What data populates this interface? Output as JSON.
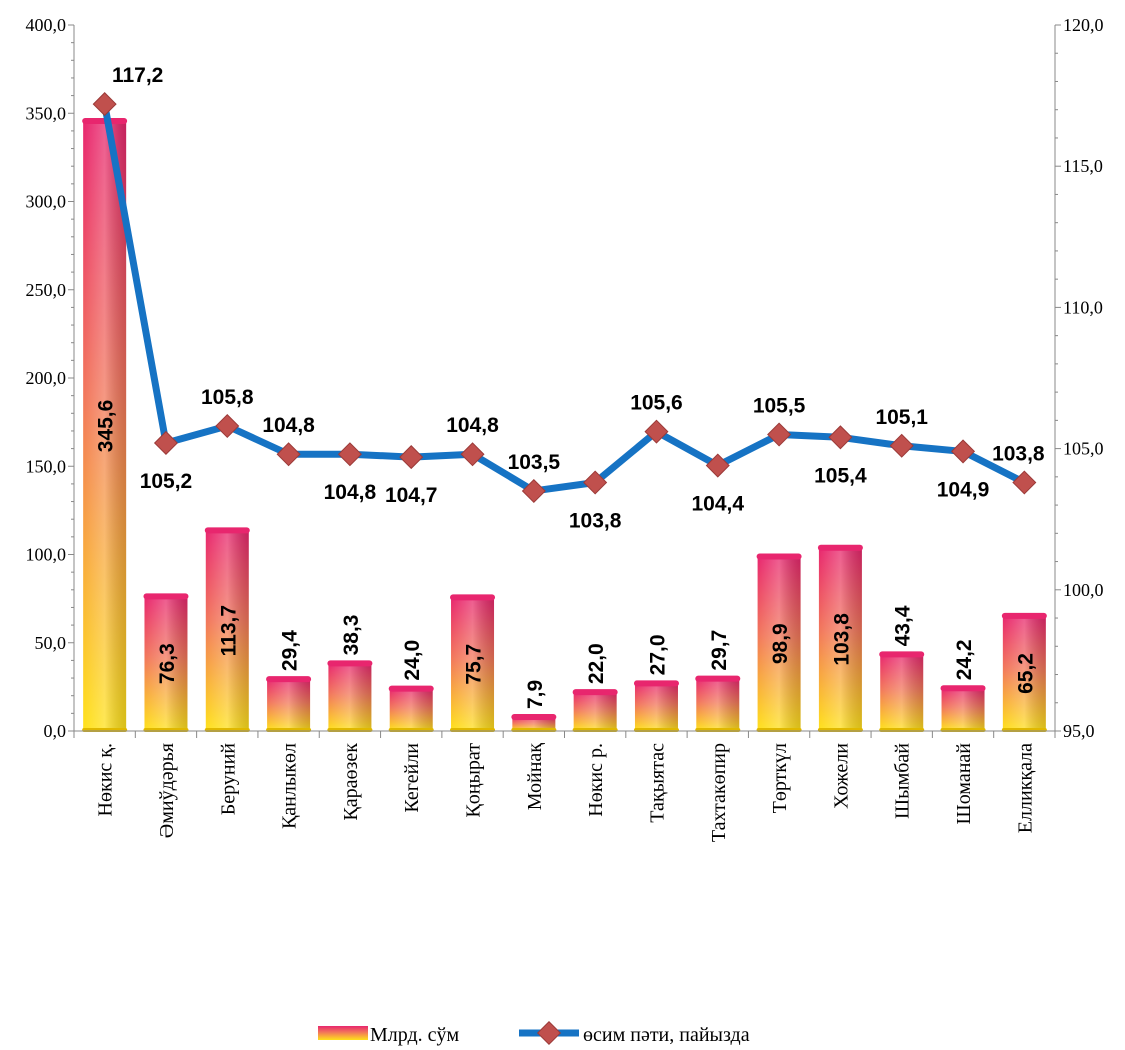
{
  "chart_data": {
    "type": "bar",
    "categories": [
      "Нөкис қ.",
      "Әмиўдәрья",
      "Беруний",
      "Қанлыкөл",
      "Қараөзек",
      "Кегейли",
      "Қоңырат",
      "Мойнақ",
      "Нөкис р.",
      "Тақыятас",
      "Тахтакөпир",
      "Төрткүл",
      "Хожели",
      "Шымбай",
      "Шоманай",
      "Елликқала"
    ],
    "series": [
      {
        "name": "Млрд. сўм",
        "type": "bar",
        "axis": "left",
        "values": [
          345.6,
          76.3,
          113.7,
          29.4,
          38.3,
          24.0,
          75.7,
          7.9,
          22.0,
          27.0,
          29.7,
          98.9,
          103.8,
          43.4,
          24.2,
          65.2
        ],
        "labels": [
          "345,6",
          "76,3",
          "113,7",
          "29,4",
          "38,3",
          "24,0",
          "75,7",
          "7,9",
          "22,0",
          "27,0",
          "29,7",
          "98,9",
          "103,8",
          "43,4",
          "24,2",
          "65,2"
        ]
      },
      {
        "name": "өсим пәти, пайызда",
        "type": "line",
        "axis": "right",
        "values": [
          117.2,
          105.2,
          105.8,
          104.8,
          104.8,
          104.7,
          104.8,
          103.5,
          103.8,
          105.6,
          104.4,
          105.5,
          105.4,
          105.1,
          104.9,
          103.8
        ],
        "labels": [
          "117,2",
          "105,2",
          "105,8",
          "104,8",
          "104,8",
          "104,7",
          "104,8",
          "103,5",
          "103,8",
          "105,6",
          "104,4",
          "105,5",
          "105,4",
          "105,1",
          "104,9",
          "103,8"
        ]
      }
    ],
    "left_axis": {
      "ylim": [
        0,
        400
      ],
      "ticks": [
        "0,0",
        "50,0",
        "100,0",
        "150,0",
        "200,0",
        "250,0",
        "300,0",
        "350,0",
        "400,0"
      ]
    },
    "right_axis": {
      "ylim": [
        95,
        120
      ],
      "ticks": [
        "95,0",
        "100,0",
        "105,0",
        "110,0",
        "115,0",
        "120,0"
      ]
    },
    "legend_position": "bottom",
    "title": "",
    "xlabel": "",
    "ylabel": ""
  },
  "colors": {
    "bar_top": "#e8266e",
    "bar_mid": "#f2765a",
    "bar_bottom": "#ffe21a",
    "line": "#1673c4",
    "marker": "#c0504d"
  }
}
